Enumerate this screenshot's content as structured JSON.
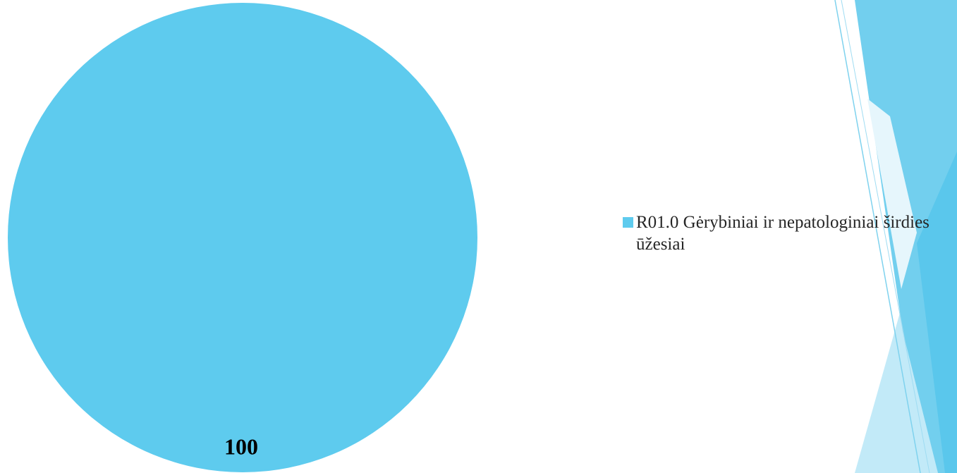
{
  "chart_data": {
    "type": "pie",
    "title": "",
    "slices": [
      {
        "label": "R01.0 Gėrybiniai ir nepatologiniai širdies ūžesiai",
        "value": 100,
        "data_label": "100",
        "color": "#5ecbee"
      }
    ],
    "legend": {
      "position": "right",
      "entries": [
        "R01.0 Gėrybiniai ir nepatologiniai širdies ūžesiai"
      ]
    }
  },
  "theme": {
    "accent_light": "#bfe9f8",
    "accent_mid": "#8fd8f2",
    "accent_dark": "#5ecbee",
    "line": "#7fd2ee"
  }
}
